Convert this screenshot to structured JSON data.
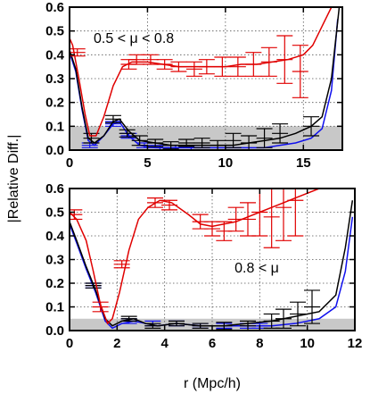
{
  "figure": {
    "ylabel": "|Relative Diff.|",
    "xlabel": "r (Mpc/h)"
  },
  "colors": {
    "red": "#e00000",
    "black": "#000000",
    "blue": "#1010ee",
    "band": "#c8c8c8"
  },
  "chart_data": [
    {
      "type": "line",
      "annotation": "0.5 < μ < 0.8",
      "xlim": [
        0,
        17.5
      ],
      "ylim": [
        0,
        0.6
      ],
      "xticks": [
        0,
        5,
        10,
        15
      ],
      "yticks": [
        0.0,
        0.1,
        0.2,
        0.3,
        0.4,
        0.5,
        0.6
      ],
      "grid": true,
      "shaded_band": [
        0,
        0.1
      ],
      "series": [
        {
          "color": "red",
          "line": [
            [
              0,
              0.47
            ],
            [
              0.2,
              0.44
            ],
            [
              0.6,
              0.3
            ],
            [
              1.0,
              0.15
            ],
            [
              1.3,
              0.06
            ],
            [
              1.7,
              0.06
            ],
            [
              2.2,
              0.14
            ],
            [
              2.8,
              0.27
            ],
            [
              3.4,
              0.35
            ],
            [
              4,
              0.37
            ],
            [
              5,
              0.37
            ],
            [
              6,
              0.36
            ],
            [
              7,
              0.35
            ],
            [
              8,
              0.35
            ],
            [
              9,
              0.35
            ],
            [
              10,
              0.35
            ],
            [
              11,
              0.36
            ],
            [
              12,
              0.36
            ],
            [
              13,
              0.37
            ],
            [
              14,
              0.38
            ],
            [
              15,
              0.4
            ],
            [
              15.6,
              0.44
            ],
            [
              16.2,
              0.52
            ],
            [
              16.8,
              0.6
            ]
          ],
          "points": [
            [
              0.5,
              0.41,
              0.015
            ],
            [
              3.8,
              0.36,
              0.02
            ],
            [
              4.3,
              0.38,
              0.02
            ],
            [
              5.2,
              0.38,
              0.02
            ],
            [
              6.1,
              0.36,
              0.02
            ],
            [
              7.0,
              0.35,
              0.02
            ],
            [
              8.0,
              0.34,
              0.03
            ],
            [
              8.8,
              0.35,
              0.03
            ],
            [
              9.8,
              0.35,
              0.04
            ],
            [
              10.8,
              0.35,
              0.04
            ],
            [
              11.8,
              0.36,
              0.05
            ],
            [
              12.8,
              0.37,
              0.06
            ],
            [
              13.8,
              0.38,
              0.1
            ],
            [
              14.8,
              0.33,
              0.11
            ]
          ]
        },
        {
          "color": "black",
          "line": [
            [
              0,
              0.42
            ],
            [
              0.4,
              0.34
            ],
            [
              0.8,
              0.18
            ],
            [
              1.2,
              0.05
            ],
            [
              1.6,
              0.03
            ],
            [
              2.2,
              0.06
            ],
            [
              2.8,
              0.12
            ],
            [
              3.2,
              0.13
            ],
            [
              3.8,
              0.08
            ],
            [
              4.5,
              0.04
            ],
            [
              5.5,
              0.03
            ],
            [
              6.5,
              0.02
            ],
            [
              7.5,
              0.02
            ],
            [
              8.5,
              0.02
            ],
            [
              9.5,
              0.02
            ],
            [
              10.5,
              0.02
            ],
            [
              11.5,
              0.03
            ],
            [
              12.5,
              0.04
            ],
            [
              13.5,
              0.05
            ],
            [
              14.5,
              0.07
            ],
            [
              15.5,
              0.1
            ],
            [
              16.2,
              0.14
            ],
            [
              16.8,
              0.3
            ],
            [
              17.3,
              0.6
            ]
          ],
          "points": [
            [
              1.4,
              0.05,
              0.02
            ],
            [
              2.8,
              0.13,
              0.015
            ],
            [
              3.7,
              0.07,
              0.015
            ],
            [
              4.5,
              0.04,
              0.02
            ],
            [
              5.5,
              0.03,
              0.015
            ],
            [
              6.5,
              0.02,
              0.015
            ],
            [
              7.5,
              0.03,
              0.015
            ],
            [
              8.5,
              0.03,
              0.02
            ],
            [
              9.5,
              0.02,
              0.02
            ],
            [
              10.5,
              0.04,
              0.03
            ],
            [
              11.5,
              0.03,
              0.03
            ],
            [
              12.5,
              0.05,
              0.04
            ],
            [
              13.5,
              0.07,
              0.04
            ],
            [
              15.5,
              0.1,
              0.04
            ]
          ]
        },
        {
          "color": "blue",
          "line": [
            [
              0,
              0.41
            ],
            [
              0.4,
              0.33
            ],
            [
              0.8,
              0.17
            ],
            [
              1.2,
              0.04
            ],
            [
              1.6,
              0.02
            ],
            [
              2.2,
              0.06
            ],
            [
              2.8,
              0.11
            ],
            [
              3.2,
              0.12
            ],
            [
              3.8,
              0.06
            ],
            [
              4.5,
              0.02
            ],
            [
              5.5,
              0.01
            ],
            [
              6.5,
              0.01
            ],
            [
              7.5,
              0.01
            ],
            [
              8.5,
              0.01
            ],
            [
              9.5,
              0.01
            ],
            [
              10.5,
              0.01
            ],
            [
              11.5,
              0.01
            ],
            [
              12.5,
              0.01
            ],
            [
              13.5,
              0.02
            ],
            [
              14.5,
              0.03
            ],
            [
              15.5,
              0.05
            ],
            [
              16.2,
              0.09
            ],
            [
              16.8,
              0.25
            ],
            [
              17.2,
              0.55
            ]
          ],
          "points": [
            [
              1.3,
              0.02,
              0.01
            ],
            [
              2.8,
              0.11,
              0.01
            ],
            [
              3.8,
              0.06,
              0.01
            ],
            [
              4.8,
              0.02,
              0.01
            ],
            [
              5.8,
              0.01,
              0.01
            ],
            [
              6.8,
              0.01,
              0.01
            ],
            [
              7.8,
              0.01,
              0.01
            ]
          ]
        }
      ]
    },
    {
      "type": "line",
      "annotation": "0.8 < μ",
      "xlim": [
        0,
        12
      ],
      "ylim": [
        0,
        0.6
      ],
      "xticks": [
        0,
        2,
        4,
        6,
        8,
        10,
        12
      ],
      "yticks": [
        0.0,
        0.1,
        0.2,
        0.3,
        0.4,
        0.5,
        0.6
      ],
      "xlabel": "r (Mpc/h)",
      "grid": true,
      "shaded_band": [
        0,
        0.05
      ],
      "series": [
        {
          "color": "red",
          "line": [
            [
              0,
              0.5
            ],
            [
              0.3,
              0.47
            ],
            [
              0.7,
              0.38
            ],
            [
              1.0,
              0.25
            ],
            [
              1.3,
              0.11
            ],
            [
              1.6,
              0.03
            ],
            [
              1.8,
              0.05
            ],
            [
              2.1,
              0.16
            ],
            [
              2.5,
              0.34
            ],
            [
              2.9,
              0.47
            ],
            [
              3.3,
              0.52
            ],
            [
              3.8,
              0.55
            ],
            [
              4.3,
              0.54
            ],
            [
              5.0,
              0.49
            ],
            [
              5.5,
              0.45
            ],
            [
              6.0,
              0.44
            ],
            [
              6.5,
              0.45
            ],
            [
              7.0,
              0.46
            ],
            [
              7.5,
              0.48
            ],
            [
              8.0,
              0.5
            ],
            [
              8.5,
              0.52
            ],
            [
              9.0,
              0.54
            ],
            [
              9.5,
              0.56
            ],
            [
              10.0,
              0.58
            ],
            [
              10.5,
              0.6
            ]
          ],
          "points": [
            [
              0.2,
              0.49,
              0.02
            ],
            [
              1.3,
              0.1,
              0.02
            ],
            [
              2.2,
              0.28,
              0.015
            ],
            [
              3.6,
              0.54,
              0.02
            ],
            [
              4.2,
              0.53,
              0.02
            ],
            [
              5.5,
              0.46,
              0.03
            ],
            [
              6.0,
              0.43,
              0.03
            ],
            [
              6.5,
              0.42,
              0.04
            ],
            [
              7.0,
              0.47,
              0.05
            ],
            [
              7.5,
              0.47,
              0.07
            ],
            [
              8.0,
              0.5,
              0.1
            ],
            [
              8.5,
              0.48,
              0.13
            ],
            [
              9.0,
              0.52,
              0.14
            ],
            [
              9.5,
              0.55,
              0.15
            ]
          ]
        },
        {
          "color": "black",
          "line": [
            [
              0,
              0.46
            ],
            [
              0.3,
              0.38
            ],
            [
              0.7,
              0.27
            ],
            [
              1.1,
              0.17
            ],
            [
              1.5,
              0.05
            ],
            [
              1.8,
              0.02
            ],
            [
              2.2,
              0.04
            ],
            [
              2.7,
              0.05
            ],
            [
              3.2,
              0.03
            ],
            [
              3.7,
              0.02
            ],
            [
              4.5,
              0.03
            ],
            [
              5.5,
              0.02
            ],
            [
              6.5,
              0.02
            ],
            [
              7.5,
              0.03
            ],
            [
              8.5,
              0.04
            ],
            [
              9.5,
              0.06
            ],
            [
              10.5,
              0.08
            ],
            [
              11.2,
              0.15
            ],
            [
              11.6,
              0.35
            ],
            [
              11.9,
              0.55
            ]
          ],
          "points": [
            [
              1.0,
              0.19,
              0.01
            ],
            [
              2.5,
              0.05,
              0.01
            ],
            [
              3.5,
              0.02,
              0.01
            ],
            [
              4.5,
              0.03,
              0.01
            ],
            [
              5.5,
              0.02,
              0.01
            ],
            [
              6.5,
              0.02,
              0.015
            ],
            [
              7.5,
              0.02,
              0.02
            ],
            [
              8.5,
              0.04,
              0.03
            ],
            [
              9.0,
              0.05,
              0.04
            ],
            [
              9.6,
              0.07,
              0.05
            ],
            [
              10.2,
              0.1,
              0.07
            ]
          ]
        },
        {
          "color": "blue",
          "line": [
            [
              0,
              0.45
            ],
            [
              0.3,
              0.37
            ],
            [
              0.7,
              0.26
            ],
            [
              1.1,
              0.16
            ],
            [
              1.5,
              0.04
            ],
            [
              1.8,
              0.01
            ],
            [
              2.2,
              0.03
            ],
            [
              2.7,
              0.04
            ],
            [
              3.2,
              0.03
            ],
            [
              3.7,
              0.02
            ],
            [
              4.5,
              0.03
            ],
            [
              5.5,
              0.02
            ],
            [
              6.5,
              0.02
            ],
            [
              7.5,
              0.02
            ],
            [
              8.5,
              0.02
            ],
            [
              9.5,
              0.03
            ],
            [
              10.5,
              0.05
            ],
            [
              11.2,
              0.1
            ],
            [
              11.6,
              0.25
            ],
            [
              11.9,
              0.48
            ]
          ],
          "points": [
            [
              1.0,
              0.19,
              0.01
            ],
            [
              2.5,
              0.04,
              0.01
            ],
            [
              3.5,
              0.03,
              0.01
            ],
            [
              4.5,
              0.03,
              0.01
            ],
            [
              5.5,
              0.02,
              0.01
            ],
            [
              6.5,
              0.02,
              0.01
            ],
            [
              7.5,
              0.02,
              0.01
            ],
            [
              8.0,
              0.02,
              0.01
            ]
          ]
        }
      ]
    }
  ]
}
